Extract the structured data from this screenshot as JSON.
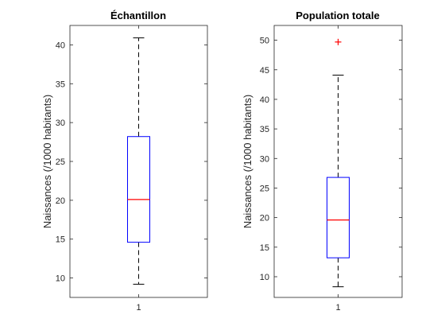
{
  "chart_data": [
    {
      "type": "box",
      "title": "Échantillon",
      "xlabel": "",
      "ylabel": "Naissances (/1000 habitants)",
      "categories": [
        "1"
      ],
      "ylim": [
        7.5,
        42.5
      ],
      "yticks": [
        10,
        15,
        20,
        25,
        30,
        35,
        40
      ],
      "box": {
        "whisker_low": 9.2,
        "q1": 14.6,
        "median": 20.1,
        "q3": 28.2,
        "whisker_high": 40.9
      },
      "outliers": [],
      "colors": {
        "box": "#0000ff",
        "median": "#ff0000",
        "whisker": "#000000",
        "outlier": "#ff0000"
      }
    },
    {
      "type": "box",
      "title": "Population totale",
      "xlabel": "",
      "ylabel": "Naissances (/1000 habitants)",
      "categories": [
        "1"
      ],
      "ylim": [
        6.5,
        52.5
      ],
      "yticks": [
        10,
        15,
        20,
        25,
        30,
        35,
        40,
        45,
        50
      ],
      "box": {
        "whisker_low": 8.3,
        "q1": 13.2,
        "median": 19.6,
        "q3": 26.8,
        "whisker_high": 44.1
      },
      "outliers": [
        49.7
      ],
      "colors": {
        "box": "#0000ff",
        "median": "#ff0000",
        "whisker": "#000000",
        "outlier": "#ff0000"
      }
    }
  ]
}
